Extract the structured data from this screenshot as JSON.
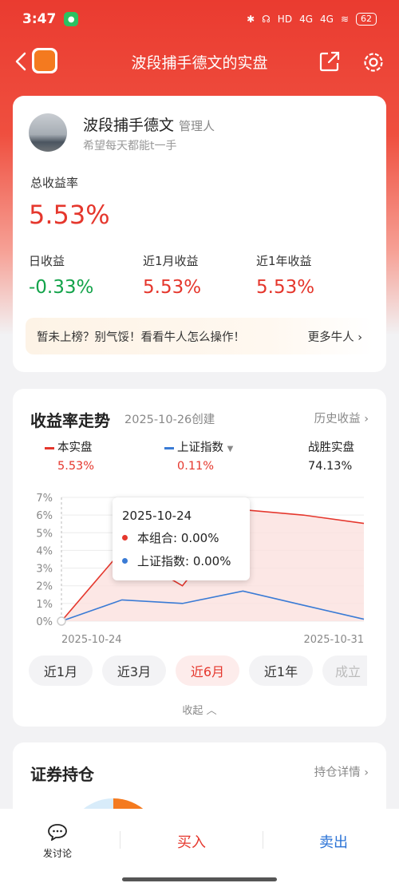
{
  "status": {
    "time": "3:47",
    "network": "4G",
    "hd": "HD",
    "battery": "62"
  },
  "nav": {
    "title": "波段捕手德文的实盘"
  },
  "profile": {
    "name": "波段捕手德文",
    "role": "管理人",
    "motto": "希望每天都能t一手",
    "total_label": "总收益率",
    "total_value": "5.53%",
    "stats": [
      {
        "label": "日收益",
        "value": "-0.33%"
      },
      {
        "label": "近1月收益",
        "value": "5.53%"
      },
      {
        "label": "近1年收益",
        "value": "5.53%"
      }
    ],
    "banner_text": "暂未上榜？别气馁！看看牛人怎么操作！",
    "banner_more": "更多牛人"
  },
  "trend": {
    "title": "收益率走势",
    "created": "2025-10-26创建",
    "history_link": "历史收益",
    "legend": [
      {
        "name": "本实盘",
        "value": "5.53%",
        "color": "#e5372d"
      },
      {
        "name": "上证指数",
        "value": "0.11%",
        "color": "#3a7bd5"
      },
      {
        "name": "战胜实盘",
        "value": "74.13%"
      }
    ],
    "tooltip": {
      "date": "2025-10-24",
      "rows": [
        {
          "label": "本组合: 0.00%",
          "color": "#e5372d"
        },
        {
          "label": "上证指数: 0.00%",
          "color": "#3a7bd5"
        }
      ]
    },
    "periods": [
      "近1月",
      "近3月",
      "近6月",
      "近1年",
      "成立"
    ],
    "active_period": "近6月",
    "collapse": "收起"
  },
  "chart_data": {
    "type": "line",
    "x": [
      "2025-10-24",
      "2025-10-27",
      "2025-10-28",
      "2025-10-29",
      "2025-10-30",
      "2025-10-31"
    ],
    "x_tick_labels": [
      "2025-10-24",
      "2025-10-31"
    ],
    "y_tick_labels": [
      "0%",
      "1%",
      "2%",
      "3%",
      "4%",
      "5%",
      "6%",
      "7%"
    ],
    "ylim": [
      0,
      7
    ],
    "series": [
      {
        "name": "本实盘",
        "values": [
          0.0,
          4.0,
          2.0,
          6.3,
          6.0,
          5.53
        ],
        "color": "#e5372d"
      },
      {
        "name": "上证指数",
        "values": [
          0.0,
          1.2,
          1.0,
          1.7,
          0.9,
          0.11
        ],
        "color": "#3a7bd5"
      }
    ],
    "grid": true
  },
  "holdings": {
    "title": "证券持仓",
    "link": "持仓详情"
  },
  "bottom": {
    "discuss": "发讨论",
    "buy": "买入",
    "sell": "卖出"
  }
}
